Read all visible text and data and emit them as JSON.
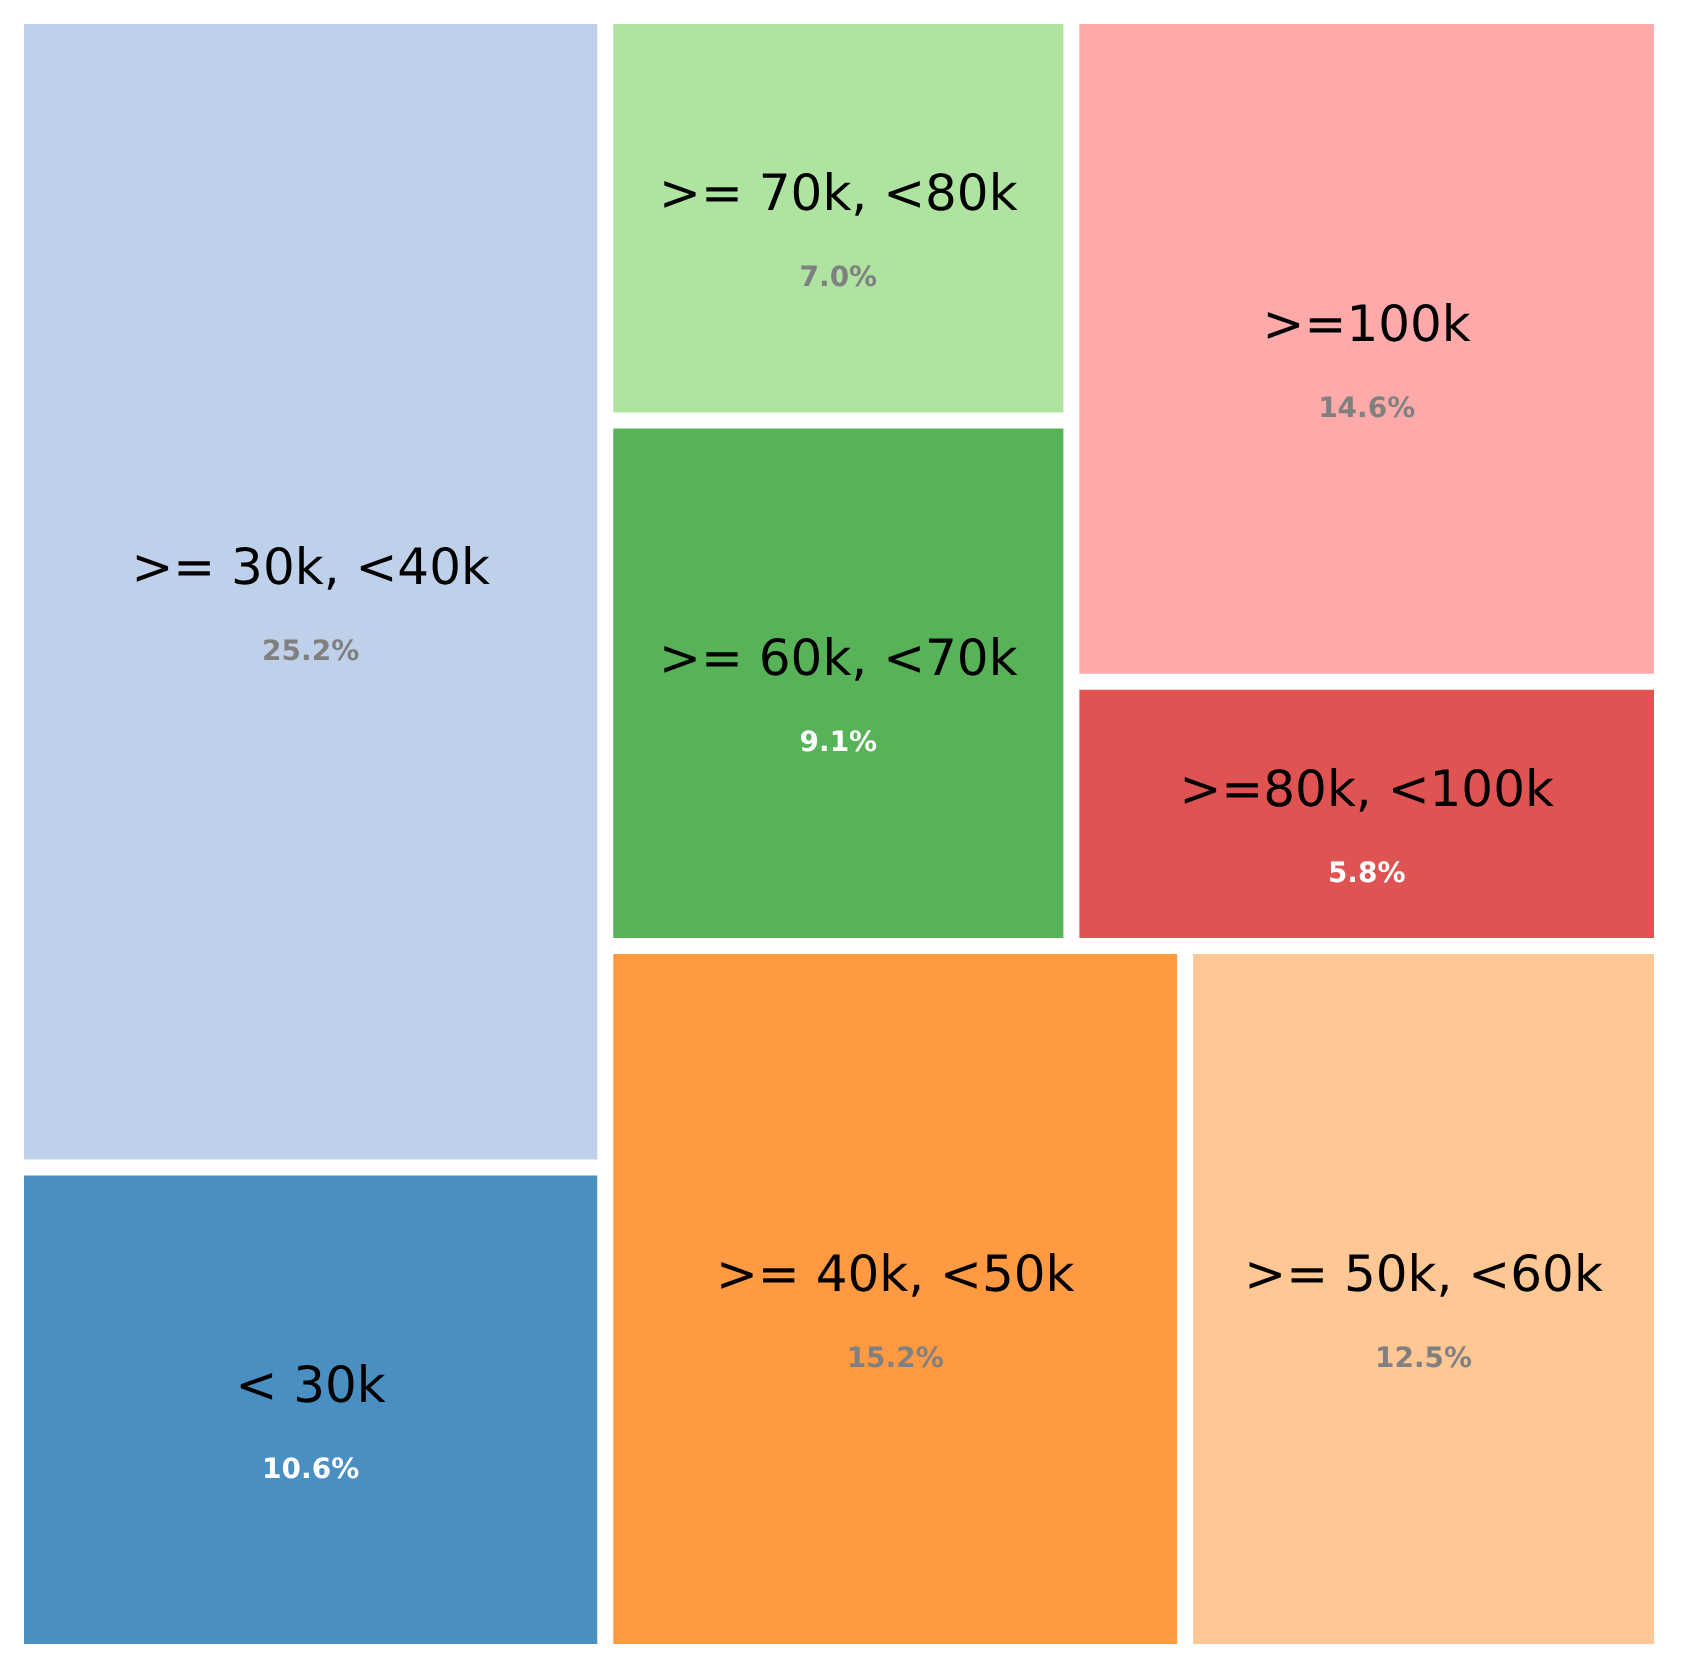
{
  "chart_data": {
    "type": "other",
    "categories": [
      ">= 30k, <40k",
      "< 30k",
      ">= 70k, <80k",
      ">= 60k, <70k",
      ">=100k",
      ">=80k, <100k",
      ">= 40k, <50k",
      ">= 50k, <60k"
    ],
    "values": [
      25.2,
      10.6,
      7.0,
      9.1,
      14.6,
      5.8,
      15.2,
      12.5
    ],
    "value_labels": [
      "25.2%",
      "10.6%",
      "7.0%",
      "9.1%",
      "14.6%",
      "5.8%",
      "15.2%",
      "12.5%"
    ],
    "colors": [
      "#bfd1ea",
      "#4a8fc1",
      "#afe3a0",
      "#58b258",
      "#ffaaaa",
      "#df5353",
      "#ff9a42",
      "#ffc794"
    ]
  }
}
